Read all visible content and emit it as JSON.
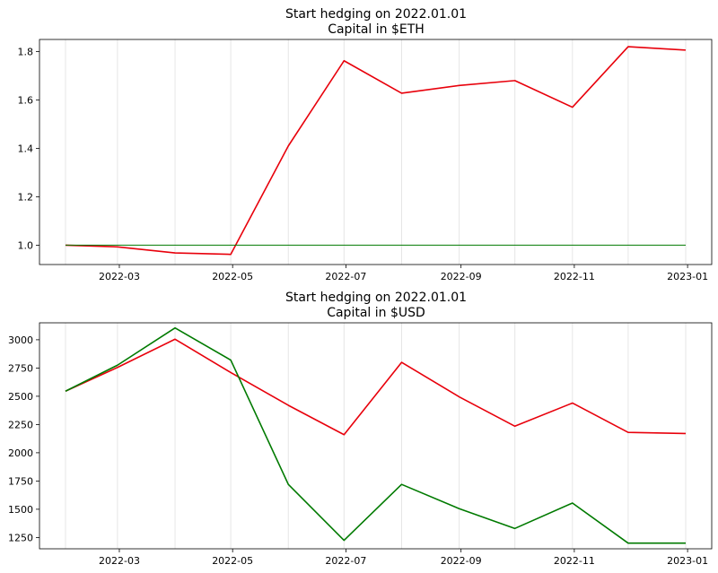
{
  "chart_data": [
    {
      "type": "line",
      "title": "Start hedging on 2022.01.01",
      "subtitle": "Capital in $ETH",
      "xlabel": "",
      "ylabel": "",
      "x_tick_labels": [
        "2022-03",
        "2022-05",
        "2022-07",
        "2022-09",
        "2022-11",
        "2023-01"
      ],
      "y_tick_labels": [
        "1.0",
        "1.2",
        "1.4",
        "1.6",
        "1.8"
      ],
      "ylim": [
        0.92,
        1.85
      ],
      "grid": "vertical",
      "x": [
        "2022-01-31",
        "2022-02-28",
        "2022-03-31",
        "2022-04-30",
        "2022-05-31",
        "2022-06-30",
        "2022-07-31",
        "2022-08-31",
        "2022-09-30",
        "2022-10-31",
        "2022-11-30",
        "2022-12-31"
      ],
      "series": [
        {
          "color": "#e8000b",
          "values": [
            1.0,
            0.993,
            0.968,
            0.962,
            1.41,
            1.762,
            1.628,
            1.66,
            1.68,
            1.57,
            1.82,
            1.806
          ]
        },
        {
          "color": "#007a00",
          "values": [
            1.0,
            1.0,
            1.0,
            1.0,
            1.0,
            1.0,
            1.0,
            1.0,
            1.0,
            1.0,
            1.0,
            1.0
          ]
        }
      ]
    },
    {
      "type": "line",
      "title": "Start hedging on 2022.01.01",
      "subtitle": "Capital in $USD",
      "xlabel": "",
      "ylabel": "",
      "x_tick_labels": [
        "2022-03",
        "2022-05",
        "2022-07",
        "2022-09",
        "2022-11",
        "2023-01"
      ],
      "y_tick_labels": [
        "1250",
        "1500",
        "1750",
        "2000",
        "2250",
        "2500",
        "2750",
        "3000"
      ],
      "ylim": [
        1150,
        3150
      ],
      "grid": "vertical",
      "x": [
        "2022-01-31",
        "2022-02-28",
        "2022-03-31",
        "2022-04-30",
        "2022-05-31",
        "2022-06-30",
        "2022-07-31",
        "2022-08-31",
        "2022-09-30",
        "2022-10-31",
        "2022-11-30",
        "2022-12-31"
      ],
      "series": [
        {
          "color": "#e8000b",
          "values": [
            2545,
            2755,
            3005,
            2710,
            2420,
            2160,
            2800,
            2495,
            2235,
            2440,
            2180,
            2170
          ]
        },
        {
          "color": "#007a00",
          "values": [
            2545,
            2775,
            3105,
            2820,
            1720,
            1225,
            1720,
            1505,
            1330,
            1555,
            1200,
            1200
          ]
        }
      ]
    }
  ]
}
